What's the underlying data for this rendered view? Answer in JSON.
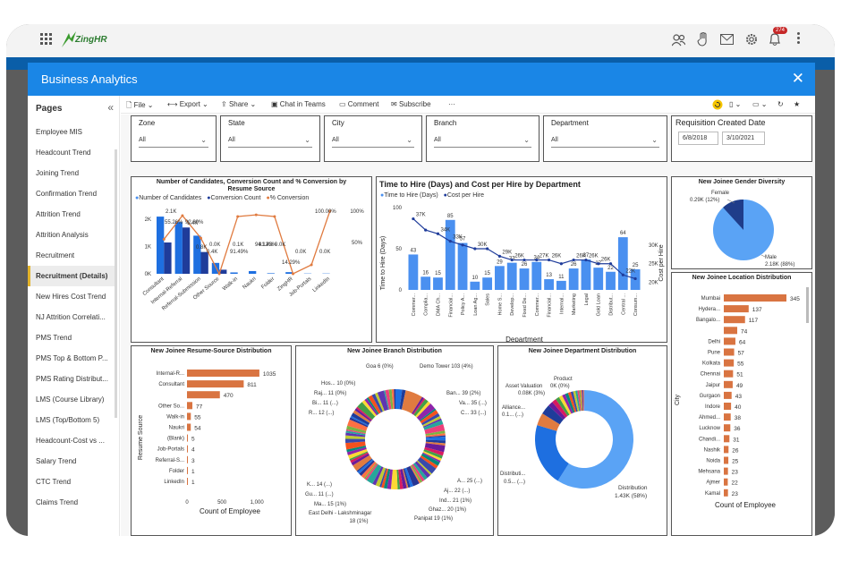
{
  "app": {
    "name": "ZingHR",
    "badge": "274"
  },
  "modal": {
    "title": "Business Analytics"
  },
  "pages": {
    "title": "Pages",
    "items": [
      "Employee MIS",
      "Headcount Trend",
      "Joining Trend",
      "Confirmation Trend",
      "Attrition Trend",
      "Attrition Analysis",
      "Recruitment",
      "Recruitment (Details)",
      "New Hires Cost Trend",
      "NJ Attrition Correlati...",
      "PMS Trend",
      "PMS Top & Bottom P...",
      "PMS Rating Distribut...",
      "LMS (Course Library)",
      "LMS (Top/Bottom 5)",
      "Headcount-Cost vs ...",
      "Salary Trend",
      "CTC Trend",
      "Claims Trend"
    ],
    "selected_index": 7
  },
  "toolbar": {
    "file": "File",
    "export": "Export",
    "share": "Share",
    "chat": "Chat in Teams",
    "comment": "Comment",
    "subscribe": "Subscribe",
    "more": "···"
  },
  "slicers": [
    {
      "label": "Zone",
      "value": "All"
    },
    {
      "label": "State",
      "value": "All"
    },
    {
      "label": "City",
      "value": "All"
    },
    {
      "label": "Branch",
      "value": "All"
    },
    {
      "label": "Department",
      "value": "All"
    }
  ],
  "requisition": {
    "title": "Requisition Created Date",
    "from": "6/8/2018",
    "to": "3/10/2021"
  },
  "chart_data": [
    {
      "type": "bar",
      "title": "Number of Candidates, Conversion Count and % Conversion by Resume Source",
      "legend": [
        "Number of Candidates",
        "Conversion Count",
        "% Conversion"
      ],
      "categories": [
        "Consultant",
        "Internal-Referral",
        "Referral-Submission",
        "Other Source",
        "Walk-in",
        "Naukri",
        "Folder",
        "ZingHR",
        "Job-Portals",
        "LinkedIn"
      ],
      "series": [
        {
          "name": "Number of Candidates",
          "values": [
            2100,
            1900,
            1400,
            400,
            50,
            100,
            20,
            60,
            10,
            10
          ]
        },
        {
          "name": "Conversion Count",
          "values": [
            1150,
            1700,
            800,
            150,
            0,
            0,
            0,
            0,
            0,
            0
          ]
        },
        {
          "name": "% Conversion",
          "values": [
            55.26,
            92.89,
            57.0,
            0.0,
            91.49,
            94.12,
            91.43,
            0.0,
            14.29,
            100.0
          ]
        }
      ],
      "data_labels": [
        "2.1K",
        "55.26%",
        "92.89%",
        "1.4K",
        "0.8K",
        "0.4K",
        "0.0K",
        "91.49%",
        "0.1K",
        "94.12%",
        "91.43%",
        "0.0K",
        "14.29%",
        "0.0K",
        "100.00%",
        "0.0K"
      ],
      "y_ticks": [
        "0K",
        "1K",
        "2K"
      ],
      "y2_ticks": [
        "50%",
        "100%"
      ]
    },
    {
      "type": "bar",
      "title": "Time to Hire (Days) and Cost per Hire by Department",
      "legend": [
        "Time to Hire (Days)",
        "Cost per Hire"
      ],
      "xlabel": "Department",
      "ylabel": "Time to Hire (Days)",
      "y2label": "Cost per Hire",
      "categories": [
        "Commer...",
        "Complia...",
        "DMA Ch...",
        "Financial...",
        "Policy A...",
        "Loan Ag...",
        "Sales",
        "Home S...",
        "Develop...",
        "Fixed De...",
        "Commer...",
        "Financial...",
        "Internal...",
        "Marketing",
        "Legal",
        "Gold Loan",
        "Distribut...",
        "Central ...",
        "Consum..."
      ],
      "series": [
        {
          "name": "Time to Hire (Days)",
          "values": [
            43,
            16,
            15,
            85,
            57,
            10,
            15,
            29,
            33,
            26,
            34,
            13,
            11,
            26,
            37,
            27,
            22,
            64,
            25
          ]
        },
        {
          "name": "Cost per Hire",
          "values": [
            37000,
            34000,
            33000,
            31000,
            30000,
            29000,
            29000,
            27000,
            26000,
            26000,
            26000,
            26000,
            25000,
            26000,
            26000,
            25000,
            25000,
            22000,
            21000
          ]
        }
      ],
      "y_ticks": [
        "0",
        "50",
        "100"
      ],
      "y2_ticks": [
        "20K",
        "25K",
        "30K"
      ],
      "cost_labels": [
        "37K",
        "34K",
        "33K",
        "30K",
        "29K",
        "26K",
        "27K",
        "26K",
        "26K",
        "26K",
        "26K",
        "22K"
      ]
    },
    {
      "type": "pie",
      "title": "New Joinee Gender Diversity",
      "labels": [
        "Female",
        "Male"
      ],
      "values": [
        290,
        2180
      ],
      "data_labels": [
        "0.29K (12%)",
        "2.18K (88%)"
      ]
    },
    {
      "type": "bar",
      "title": "New Joinee Location Distribution",
      "xlabel": "Count of Employee",
      "ylabel": "City",
      "categories": [
        "Mumbai",
        "Hydera...",
        "Bangalo...",
        "",
        "Delhi",
        "Pune",
        "Kolkata",
        "Chennai",
        "Jaipur",
        "Gurgaon",
        "Indore",
        "Ahmed...",
        "Lucknow",
        "Chandi...",
        "Nashik",
        "Noida",
        "Mehsana",
        "Ajmer",
        "Kamal"
      ],
      "values": [
        345,
        137,
        117,
        74,
        64,
        57,
        55,
        51,
        49,
        43,
        40,
        38,
        36,
        31,
        26,
        25,
        23,
        22,
        23
      ]
    },
    {
      "type": "bar",
      "title": "New Joinee Resume-Source Distribution",
      "xlabel": "Count of Employee",
      "ylabel": "Resume Source",
      "categories": [
        "Internal-R...",
        "Consultant",
        "",
        "Other So...",
        "Walk-in",
        "Naukri",
        "(Blank)",
        "Job-Portals",
        "Referral-S...",
        "Folder",
        "LinkedIn"
      ],
      "values": [
        1035,
        811,
        470,
        77,
        55,
        54,
        5,
        4,
        3,
        1,
        1
      ],
      "x_ticks": [
        "0",
        "500",
        "1,000"
      ]
    },
    {
      "type": "pie",
      "title": "New Joinee Branch Distribution",
      "labels": [
        "Goa",
        "Demo Tower",
        "Hos...",
        "Raj...",
        "Bi...",
        "R...",
        "Ban...",
        "Va...",
        "C...",
        "K...",
        "Gu...",
        "Ma...",
        "East Delhi - Lakshminagar",
        "A...",
        "Aj...",
        "Ind...",
        "Ghaz...",
        "Panipat"
      ],
      "data_labels": [
        "6 (0%)",
        "103 (4%)",
        "10 (0%)",
        "11 (0%)",
        "11 (...)",
        "12 (...)",
        "39 (2%)",
        "35 (...)",
        "33 (...)",
        "14 (...)",
        "11 (...)",
        "15 (1%)",
        "18 (1%)",
        "25 (...)",
        "22 (...)",
        "21 (1%)",
        "20 (1%)",
        "19 (1%)"
      ]
    },
    {
      "type": "pie",
      "title": "New Joinee Department Distribution",
      "labels": [
        "Asset Valuation",
        "Product",
        "Alliance...",
        "Distributi...",
        "Distribution"
      ],
      "data_labels": [
        "0.08K (3%)",
        "0K (0%)",
        "0.1...(...)",
        "0.5... (...)",
        "1.43K (58%)"
      ]
    }
  ],
  "texts": {
    "c1": {
      "title1": "Number of Candidates, Conversion Count and % Conversion by",
      "title2": "Resume Source",
      "leg1": "Number of Candidates",
      "leg2": "Conversion Count",
      "leg3": "% Conversion"
    },
    "c2": {
      "title": "Time to Hire (Days) and Cost per Hire by Department",
      "leg1": "Time to Hire (Days)",
      "leg2": "Cost per Hire",
      "xlabel": "Department",
      "ylabel": "Time to Hire (Days)",
      "y2label": "Cost per Hire"
    },
    "c3": {
      "title": "New Joinee Gender Diversity",
      "female": "Female",
      "female_val": "0.29K (12%)",
      "male": "Male",
      "male_val": "2.18K (88%)"
    },
    "c4": {
      "title": "New Joinee Location Distribution",
      "xlabel": "Count of Employee",
      "ylabel": "City"
    },
    "c5": {
      "title": "New Joinee Resume-Source Distribution",
      "xlabel": "Count of Employee",
      "ylabel": "Resume Source"
    },
    "c6": {
      "title": "New Joinee Branch Distribution"
    },
    "c7": {
      "title": "New Joinee Department Distribution",
      "l1": "Asset Valuation",
      "v1": "0.08K (3%)",
      "l2": "Product",
      "v2": "0K (0%)",
      "l3": "Alliance...",
      "v3": "0.1... (...)",
      "l4": "Distributi...",
      "v4": "0.5... (...)",
      "l5": "Distribution",
      "v5": "1.43K (58%)"
    }
  },
  "colors": {
    "accent": "#1a86e6",
    "bar_blue": "#1e6fe0",
    "bar_light": "#4a90f0",
    "navy": "#1f3c9a",
    "orange": "#e07b40",
    "pie_blue": "#5aa3f5",
    "pie_dark": "#1f3d8a",
    "bar_orange": "#d97441"
  }
}
